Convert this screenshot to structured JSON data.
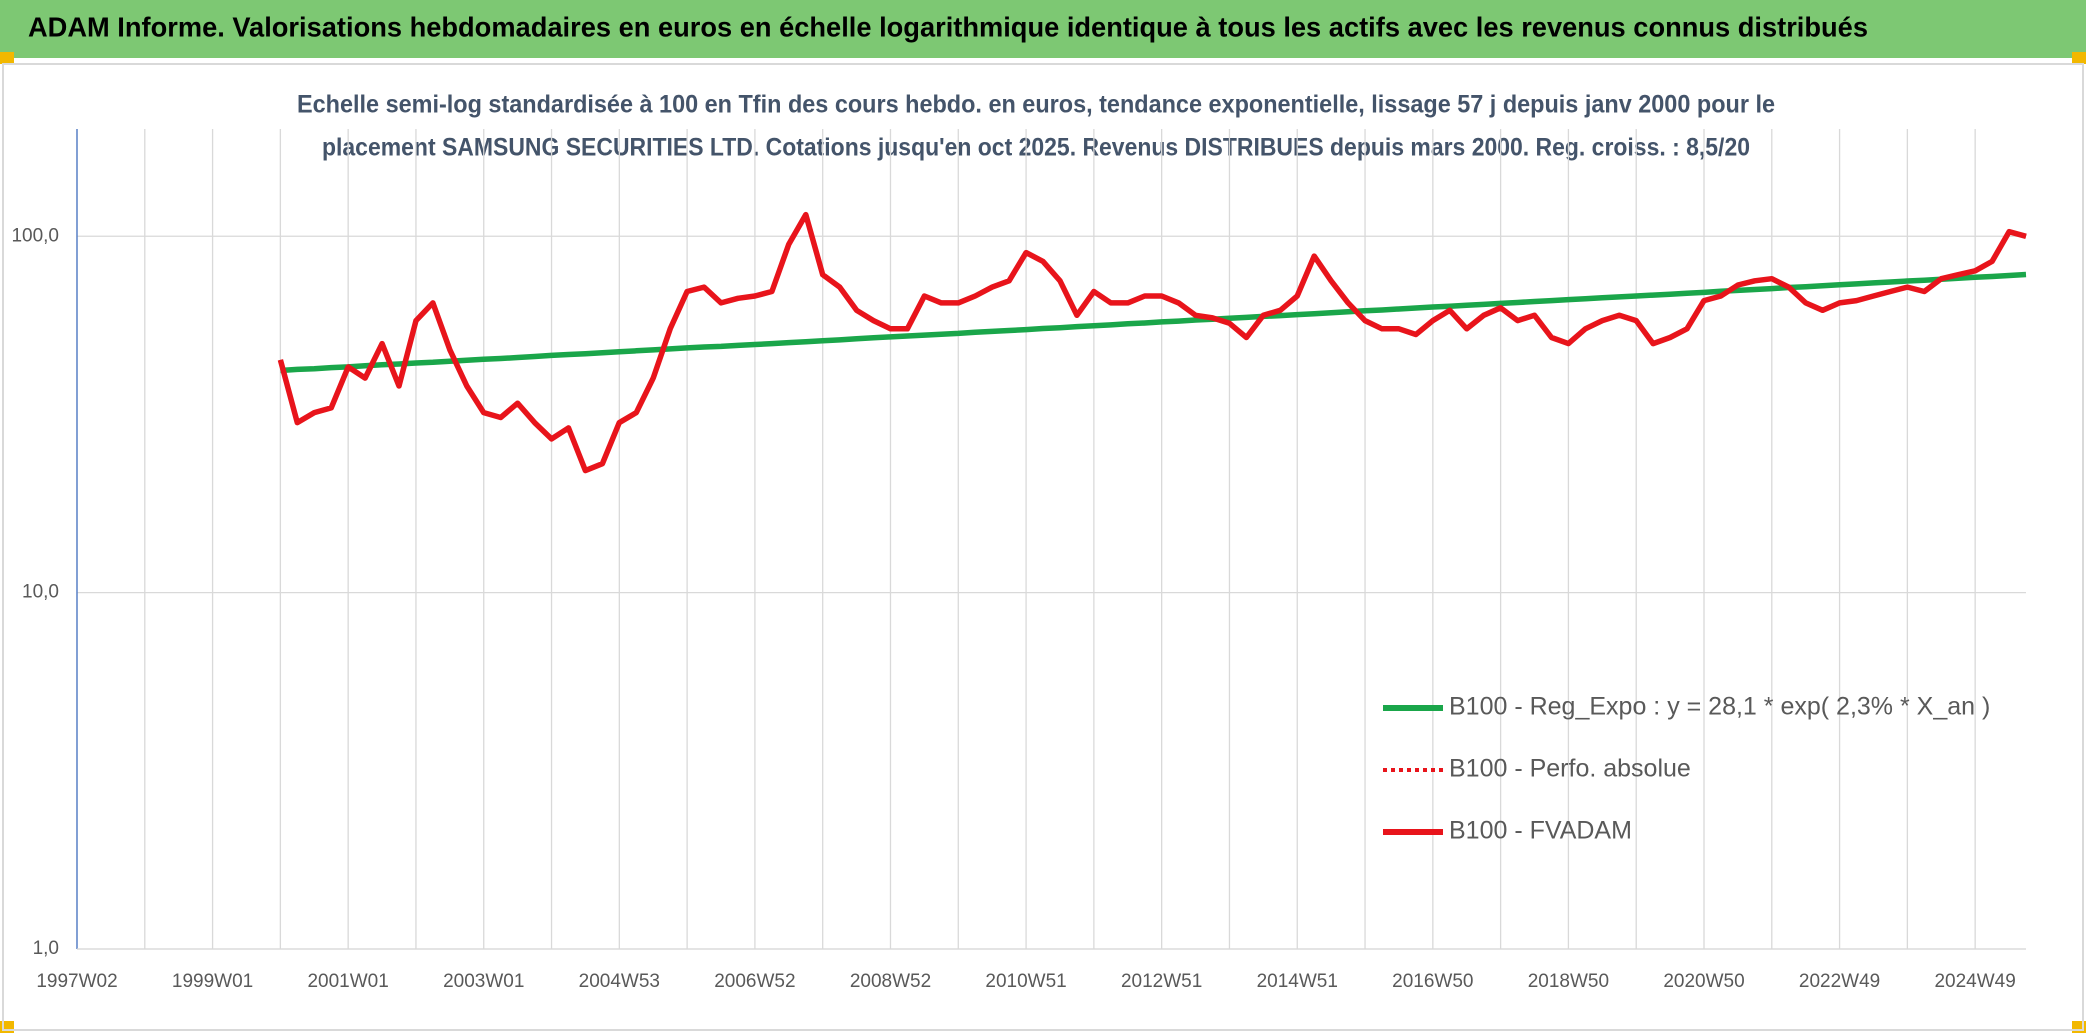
{
  "header": {
    "title": "ADAM Informe. Valorisations hebdomadaires en euros en échelle logarithmique identique à tous les actifs avec les revenus connus distribués"
  },
  "chart_data": {
    "type": "line",
    "title_lines": [
      "Echelle semi-log standardisée à 100 en Tfin des cours hebdo. en euros, tendance exponentielle, lissage 57 j depuis janv 2000 pour le",
      "placement SAMSUNG SECURITIES LTD. Cotations jusqu'en oct 2025. Revenus DISTRIBUES depuis mars 2000. Reg. croiss. : 8,5/20"
    ],
    "categories": [
      "1997W02",
      null,
      null,
      null,
      null,
      null,
      null,
      null,
      "1999W01",
      null,
      null,
      null,
      null,
      null,
      null,
      null,
      "2001W01",
      null,
      null,
      null,
      null,
      null,
      null,
      null,
      "2003W01",
      null,
      null,
      null,
      null,
      null,
      null,
      null,
      "2004W53",
      null,
      null,
      null,
      null,
      null,
      null,
      null,
      "2006W52",
      null,
      null,
      null,
      null,
      null,
      null,
      null,
      "2008W52",
      null,
      null,
      null,
      null,
      null,
      null,
      null,
      "2010W51",
      null,
      null,
      null,
      null,
      null,
      null,
      null,
      "2012W51",
      null,
      null,
      null,
      null,
      null,
      null,
      null,
      "2014W51",
      null,
      null,
      null,
      null,
      null,
      null,
      null,
      "2016W50",
      null,
      null,
      null,
      null,
      null,
      null,
      null,
      "2018W50",
      null,
      null,
      null,
      null,
      null,
      null,
      null,
      "2020W50",
      null,
      null,
      null,
      null,
      null,
      null,
      null,
      "2022W49",
      null,
      null,
      null,
      null,
      null,
      null,
      null,
      "2024W49",
      null,
      null,
      null
    ],
    "series": [
      {
        "name": "B100 - Reg_Expo : y = 28,1 * exp( 2,3% *  X_an )",
        "color": "#1aa64a",
        "style": "solid",
        "values": [
          null,
          null,
          null,
          null,
          null,
          null,
          null,
          null,
          null,
          null,
          null,
          null,
          42.0,
          42.3,
          42.5,
          42.8,
          43.0,
          43.3,
          43.6,
          43.8,
          44.1,
          44.3,
          44.6,
          44.9,
          45.2,
          45.4,
          45.7,
          46.0,
          46.3,
          46.6,
          46.8,
          47.1,
          47.4,
          47.7,
          48.0,
          48.3,
          48.6,
          48.9,
          49.1,
          49.4,
          49.7,
          50.0,
          50.3,
          50.6,
          50.9,
          51.2,
          51.6,
          51.9,
          52.2,
          52.5,
          52.8,
          53.1,
          53.4,
          53.8,
          54.1,
          54.4,
          54.7,
          55.1,
          55.4,
          55.8,
          56.1,
          56.4,
          56.8,
          57.1,
          57.5,
          57.8,
          58.2,
          58.5,
          58.9,
          59.2,
          59.6,
          59.9,
          60.3,
          60.6,
          61.0,
          61.4,
          61.8,
          62.1,
          62.5,
          62.9,
          63.3,
          63.6,
          64.0,
          64.4,
          64.8,
          65.2,
          65.6,
          66.0,
          66.4,
          66.8,
          67.2,
          67.6,
          68.0,
          68.4,
          68.8,
          69.2,
          69.6,
          70.1,
          70.5,
          70.9,
          71.3,
          71.8,
          72.2,
          72.6,
          73.1,
          73.5,
          74.0,
          74.4,
          74.9,
          75.3,
          75.8,
          76.2,
          76.7,
          77.1,
          77.6,
          78.1
        ]
      },
      {
        "name": "B100 - Perfo. absolue",
        "color": "#e8141b",
        "style": "dotted",
        "values": [
          null,
          null,
          null,
          null,
          null,
          null,
          null,
          null,
          null,
          null,
          null,
          null,
          45,
          30,
          32,
          33,
          43,
          40,
          50,
          38,
          58,
          65,
          48,
          38,
          32,
          31,
          34,
          30,
          27,
          29,
          22,
          23,
          30,
          32,
          40,
          55,
          70,
          72,
          65,
          67,
          68,
          70,
          95,
          115,
          78,
          72,
          62,
          58,
          55,
          55,
          68,
          65,
          65,
          68,
          72,
          75,
          90,
          85,
          75,
          60,
          70,
          65,
          65,
          68,
          68,
          65,
          60,
          59,
          57,
          52,
          60,
          62,
          68,
          88,
          75,
          65,
          58,
          55,
          55,
          53,
          58,
          62,
          55,
          60,
          63,
          58,
          60,
          52,
          50,
          55,
          58,
          60,
          58,
          50,
          52,
          55,
          66,
          68,
          73,
          75,
          76,
          72,
          65,
          62,
          65,
          66,
          68,
          70,
          72,
          70,
          76,
          78,
          80,
          85,
          103,
          100
        ]
      },
      {
        "name": "B100 - FVADAM",
        "color": "#e8141b",
        "style": "solid",
        "values": [
          null,
          null,
          null,
          null,
          null,
          null,
          null,
          null,
          null,
          null,
          null,
          null,
          45,
          30,
          32,
          33,
          43,
          40,
          50,
          38,
          58,
          65,
          48,
          38,
          32,
          31,
          34,
          30,
          27,
          29,
          22,
          23,
          30,
          32,
          40,
          55,
          70,
          72,
          65,
          67,
          68,
          70,
          95,
          115,
          78,
          72,
          62,
          58,
          55,
          55,
          68,
          65,
          65,
          68,
          72,
          75,
          90,
          85,
          75,
          60,
          70,
          65,
          65,
          68,
          68,
          65,
          60,
          59,
          57,
          52,
          60,
          62,
          68,
          88,
          75,
          65,
          58,
          55,
          55,
          53,
          58,
          62,
          55,
          60,
          63,
          58,
          60,
          52,
          50,
          55,
          58,
          60,
          58,
          50,
          52,
          55,
          66,
          68,
          73,
          75,
          76,
          72,
          65,
          62,
          65,
          66,
          68,
          70,
          72,
          70,
          76,
          78,
          80,
          85,
          103,
          100
        ]
      }
    ],
    "ylim": [
      1,
      200
    ],
    "yticks": [
      {
        "value": 1,
        "label": "1,0"
      },
      {
        "value": 10,
        "label": "10,0"
      },
      {
        "value": 100,
        "label": "100,0"
      }
    ],
    "log_y": true,
    "grid": true,
    "legend": "lower right"
  }
}
